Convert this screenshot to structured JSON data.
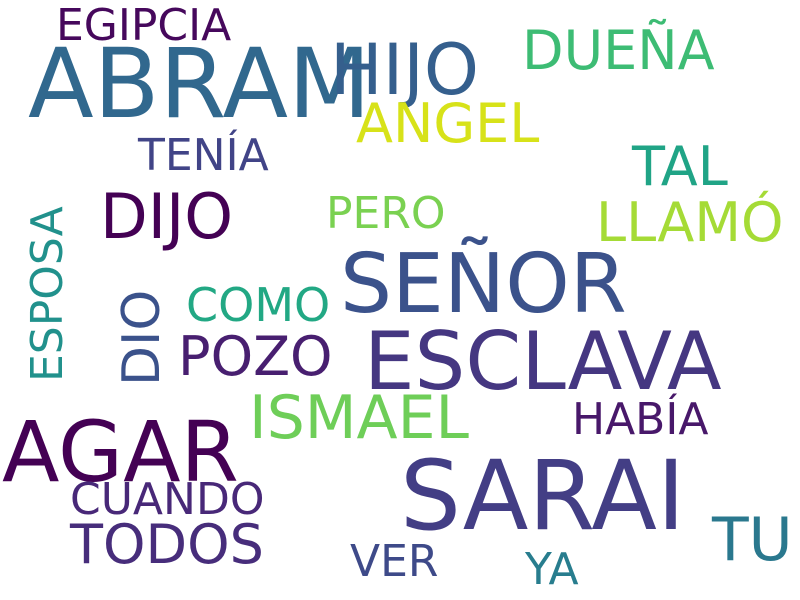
{
  "words": [
    {
      "text": "ABRAM",
      "color": "#31688e"
    },
    {
      "text": "SARAI",
      "color": "#433e85"
    },
    {
      "text": "AGAR",
      "color": "#440154"
    },
    {
      "text": "SEÑOR",
      "color": "#3b528b"
    },
    {
      "text": "ESCLAVA",
      "color": "#453781"
    },
    {
      "text": "HIJO",
      "color": "#355f8d"
    },
    {
      "text": "ISMAEL",
      "color": "#6ece58"
    },
    {
      "text": "DIJO",
      "color": "#440154"
    },
    {
      "text": "DUEÑA",
      "color": "#3dbc74"
    },
    {
      "text": "ANGEL",
      "color": "#d7e219"
    },
    {
      "text": "TODOS",
      "color": "#472d7b"
    },
    {
      "text": "TU",
      "color": "#2a788e"
    },
    {
      "text": "LLAMÓ",
      "color": "#a5db36"
    },
    {
      "text": "TAL",
      "color": "#20a486"
    },
    {
      "text": "POZO",
      "color": "#481f70"
    },
    {
      "text": "EGIPCIA",
      "color": "#46085c"
    },
    {
      "text": "TENÍA",
      "color": "#414487"
    },
    {
      "text": "PERO",
      "color": "#7ad151"
    },
    {
      "text": "COMO",
      "color": "#22a884"
    },
    {
      "text": "HABÍA",
      "color": "#48186a"
    },
    {
      "text": "CUANDO",
      "color": "#482878"
    },
    {
      "text": "VER",
      "color": "#3e4a89"
    },
    {
      "text": "YA",
      "color": "#287d8e"
    },
    {
      "text": "ESPOSA",
      "color": "#21918c"
    },
    {
      "text": "DIO",
      "color": "#3b528b"
    }
  ]
}
